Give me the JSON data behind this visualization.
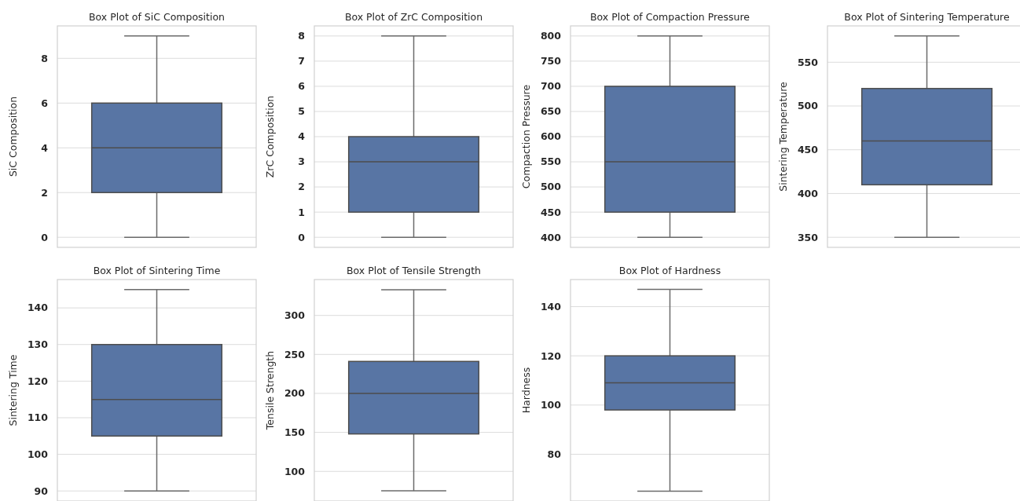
{
  "chart_data": [
    {
      "type": "box",
      "title": "Box Plot of SiC Composition",
      "ylabel": "SiC Composition",
      "categories": [
        null
      ],
      "color": "#5875a4",
      "boxes": [
        {
          "low": 0,
          "q1": 2,
          "median": 4,
          "q3": 6,
          "high": 9
        }
      ],
      "ylim": [
        -0.45,
        9.45
      ],
      "yticks": [
        0,
        2,
        4,
        6,
        8
      ],
      "grid": "y",
      "tick_labels": "y"
    },
    {
      "type": "box",
      "title": "Box Plot of ZrC Composition",
      "ylabel": "ZrC Composition",
      "categories": [
        null
      ],
      "color": "#5875a4",
      "boxes": [
        {
          "low": 0,
          "q1": 1,
          "median": 3,
          "q3": 4,
          "high": 8
        }
      ],
      "ylim": [
        -0.4,
        8.4
      ],
      "yticks": [
        0,
        1,
        2,
        3,
        4,
        5,
        6,
        7,
        8
      ],
      "grid": "y",
      "tick_labels": "y"
    },
    {
      "type": "box",
      "title": "Box Plot of Compaction Pressure",
      "ylabel": "Compaction Pressure",
      "categories": [
        null
      ],
      "color": "#5875a4",
      "boxes": [
        {
          "low": 400,
          "q1": 450,
          "median": 550,
          "q3": 700,
          "high": 800
        }
      ],
      "ylim": [
        380,
        820
      ],
      "yticks": [
        400,
        450,
        500,
        550,
        600,
        650,
        700,
        750,
        800
      ],
      "grid": "y",
      "tick_labels": "y"
    },
    {
      "type": "box",
      "title": "Box Plot of Sintering Temperature",
      "ylabel": "Sintering Temperature",
      "categories": [
        null
      ],
      "color": "#5875a4",
      "boxes": [
        {
          "low": 350,
          "q1": 410,
          "median": 460,
          "q3": 520,
          "high": 580
        }
      ],
      "ylim": [
        338.5,
        591.5
      ],
      "yticks": [
        350,
        400,
        450,
        500,
        550
      ],
      "grid": "y",
      "tick_labels": "y"
    },
    {
      "type": "box",
      "title": "Box Plot of Sintering Time",
      "ylabel": "Sintering Time",
      "categories": [
        null
      ],
      "color": "#5875a4",
      "boxes": [
        {
          "low": 90,
          "q1": 105,
          "median": 115,
          "q3": 130,
          "high": 145
        }
      ],
      "ylim": [
        87.25,
        147.75
      ],
      "yticks": [
        90,
        100,
        110,
        120,
        130,
        140
      ],
      "grid": "y",
      "tick_labels": "y"
    },
    {
      "type": "box",
      "title": "Box Plot of Tensile Strength",
      "ylabel": "Tensile Strength",
      "categories": [
        null
      ],
      "color": "#5875a4",
      "boxes": [
        {
          "low": 75,
          "q1": 148,
          "median": 200,
          "q3": 241,
          "high": 333
        }
      ],
      "ylim": [
        62,
        346
      ],
      "yticks": [
        100,
        150,
        200,
        250,
        300
      ],
      "grid": "y",
      "tick_labels": "y"
    },
    {
      "type": "box",
      "title": "Box Plot of Hardness",
      "ylabel": "Hardness",
      "categories": [
        null
      ],
      "color": "#5875a4",
      "boxes": [
        {
          "low": 65,
          "q1": 98,
          "median": 109,
          "q3": 120,
          "high": 147
        }
      ],
      "ylim": [
        61,
        151
      ],
      "yticks": [
        80,
        100,
        120,
        140
      ],
      "grid": "y",
      "tick_labels": "y"
    }
  ]
}
